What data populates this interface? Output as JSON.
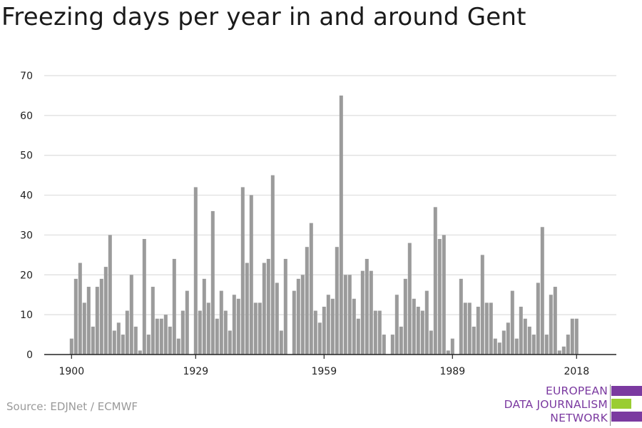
{
  "title": "Freezing days per year in and around Gent",
  "source": "Source: EDJNet / ECMWF",
  "logo": {
    "lines": [
      "EUROPEAN",
      "DATA JOURNALISM",
      "NETWORK"
    ],
    "colors": {
      "purple": "#7b3aa0",
      "green": "#9acd32"
    }
  },
  "colors": {
    "bar": "#9b9b9b",
    "grid": "#dddddd",
    "axis": "#222222"
  },
  "chart_data": {
    "type": "bar",
    "title": "Freezing days per year in and around Gent",
    "xlabel": "",
    "ylabel": "",
    "ylim": [
      0,
      70
    ],
    "yticks": [
      0,
      10,
      20,
      30,
      40,
      50,
      60,
      70
    ],
    "xticks": [
      1900,
      1929,
      1959,
      1989,
      2018
    ],
    "grid": true,
    "x": [
      1900,
      1901,
      1902,
      1903,
      1904,
      1905,
      1906,
      1907,
      1908,
      1909,
      1910,
      1911,
      1912,
      1913,
      1914,
      1915,
      1916,
      1917,
      1918,
      1919,
      1920,
      1921,
      1922,
      1923,
      1924,
      1925,
      1926,
      1927,
      1928,
      1929,
      1930,
      1931,
      1932,
      1933,
      1934,
      1935,
      1936,
      1937,
      1938,
      1939,
      1940,
      1941,
      1942,
      1943,
      1944,
      1945,
      1946,
      1947,
      1948,
      1949,
      1950,
      1951,
      1952,
      1953,
      1954,
      1955,
      1956,
      1957,
      1958,
      1959,
      1960,
      1961,
      1962,
      1963,
      1964,
      1965,
      1966,
      1967,
      1968,
      1969,
      1970,
      1971,
      1972,
      1973,
      1974,
      1975,
      1976,
      1977,
      1978,
      1979,
      1980,
      1981,
      1982,
      1983,
      1984,
      1985,
      1986,
      1987,
      1988,
      1989,
      1990,
      1991,
      1992,
      1993,
      1994,
      1995,
      1996,
      1997,
      1998,
      1999,
      2000,
      2001,
      2002,
      2003,
      2004,
      2005,
      2006,
      2007,
      2008,
      2009,
      2010,
      2011,
      2012,
      2013,
      2014,
      2015,
      2016,
      2017,
      2018
    ],
    "values": [
      4,
      19,
      23,
      13,
      17,
      7,
      17,
      19,
      22,
      30,
      6,
      8,
      5,
      11,
      20,
      7,
      1,
      29,
      5,
      17,
      9,
      9,
      10,
      7,
      24,
      4,
      11,
      16,
      0,
      42,
      11,
      19,
      13,
      36,
      9,
      16,
      11,
      6,
      15,
      14,
      42,
      23,
      40,
      13,
      13,
      23,
      24,
      45,
      18,
      6,
      24,
      0,
      16,
      19,
      20,
      27,
      33,
      11,
      8,
      12,
      15,
      14,
      27,
      65,
      20,
      20,
      14,
      9,
      21,
      24,
      21,
      11,
      11,
      5,
      0,
      5,
      15,
      7,
      19,
      28,
      14,
      12,
      11,
      16,
      6,
      37,
      29,
      30,
      1,
      4,
      0,
      19,
      13,
      13,
      7,
      12,
      25,
      13,
      13,
      4,
      3,
      6,
      8,
      16,
      4,
      12,
      9,
      7,
      5,
      18,
      32,
      5,
      15,
      17,
      1,
      2,
      5,
      9,
      9
    ]
  }
}
